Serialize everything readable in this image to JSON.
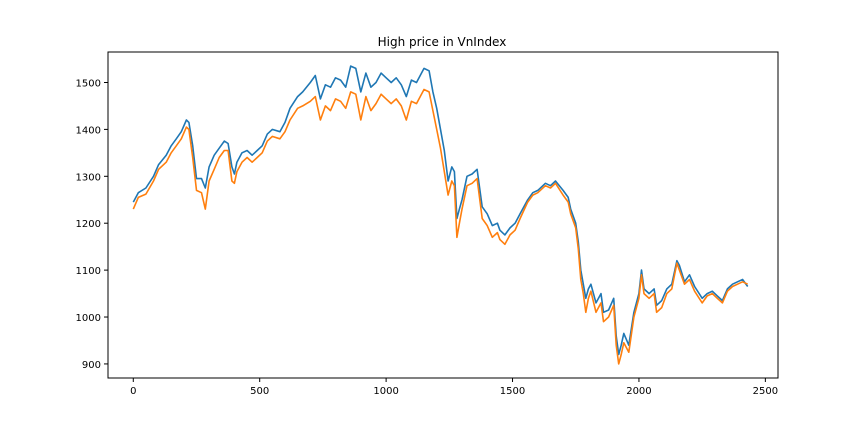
{
  "chart_data": {
    "type": "line",
    "title": "High price in VnIndex",
    "xlabel": "",
    "ylabel": "",
    "xlim": [
      -100,
      2550
    ],
    "ylim": [
      870,
      1565
    ],
    "xticks": [
      0,
      500,
      1000,
      1500,
      2000,
      2500
    ],
    "yticks": [
      900,
      1000,
      1100,
      1200,
      1300,
      1400,
      1500
    ],
    "grid": false,
    "legend": "none",
    "series": [
      {
        "color": "#1f77b4",
        "x": [
          0,
          20,
          50,
          80,
          100,
          130,
          150,
          170,
          190,
          210,
          220,
          235,
          250,
          270,
          285,
          300,
          320,
          340,
          360,
          375,
          390,
          400,
          410,
          430,
          450,
          470,
          490,
          510,
          530,
          550,
          580,
          600,
          620,
          650,
          670,
          700,
          720,
          740,
          760,
          780,
          800,
          820,
          840,
          860,
          880,
          900,
          920,
          940,
          960,
          980,
          1000,
          1020,
          1040,
          1060,
          1080,
          1100,
          1120,
          1150,
          1170,
          1185,
          1200,
          1215,
          1230,
          1245,
          1260,
          1270,
          1280,
          1290,
          1300,
          1320,
          1340,
          1360,
          1380,
          1400,
          1420,
          1440,
          1450,
          1470,
          1490,
          1510,
          1530,
          1560,
          1580,
          1600,
          1630,
          1650,
          1670,
          1700,
          1720,
          1730,
          1750,
          1760,
          1770,
          1780,
          1790,
          1800,
          1810,
          1830,
          1850,
          1860,
          1880,
          1900,
          1910,
          1920,
          1930,
          1940,
          1960,
          1980,
          2000,
          2010,
          2020,
          2040,
          2060,
          2070,
          2090,
          2110,
          2130,
          2150,
          2160,
          2180,
          2200,
          2220,
          2250,
          2270,
          2290,
          2310,
          2330,
          2350,
          2370,
          2390,
          2410,
          2430
        ],
        "y": [
          1245,
          1265,
          1275,
          1300,
          1325,
          1345,
          1365,
          1380,
          1395,
          1420,
          1415,
          1365,
          1295,
          1295,
          1275,
          1320,
          1345,
          1360,
          1375,
          1370,
          1320,
          1305,
          1330,
          1350,
          1355,
          1345,
          1355,
          1365,
          1390,
          1400,
          1395,
          1415,
          1445,
          1470,
          1480,
          1500,
          1515,
          1465,
          1495,
          1490,
          1510,
          1505,
          1490,
          1535,
          1530,
          1480,
          1520,
          1490,
          1500,
          1520,
          1510,
          1500,
          1510,
          1495,
          1470,
          1505,
          1500,
          1530,
          1525,
          1480,
          1445,
          1400,
          1355,
          1290,
          1320,
          1310,
          1210,
          1230,
          1250,
          1300,
          1305,
          1315,
          1235,
          1220,
          1195,
          1200,
          1185,
          1175,
          1190,
          1200,
          1220,
          1250,
          1265,
          1270,
          1285,
          1280,
          1290,
          1270,
          1255,
          1230,
          1200,
          1160,
          1100,
          1070,
          1040,
          1060,
          1070,
          1030,
          1050,
          1010,
          1015,
          1040,
          960,
          920,
          940,
          965,
          940,
          1010,
          1050,
          1100,
          1060,
          1050,
          1060,
          1025,
          1035,
          1060,
          1070,
          1120,
          1110,
          1075,
          1090,
          1065,
          1040,
          1050,
          1055,
          1045,
          1035,
          1060,
          1070,
          1075,
          1080,
          1065
        ]
      },
      {
        "color": "#ff7f0e",
        "x": [
          0,
          20,
          50,
          80,
          100,
          130,
          150,
          170,
          190,
          210,
          220,
          235,
          250,
          270,
          285,
          300,
          320,
          340,
          360,
          375,
          390,
          400,
          410,
          430,
          450,
          470,
          490,
          510,
          530,
          550,
          580,
          600,
          620,
          650,
          670,
          700,
          720,
          740,
          760,
          780,
          800,
          820,
          840,
          860,
          880,
          900,
          920,
          940,
          960,
          980,
          1000,
          1020,
          1040,
          1060,
          1080,
          1100,
          1120,
          1150,
          1170,
          1185,
          1200,
          1215,
          1230,
          1245,
          1260,
          1270,
          1280,
          1290,
          1300,
          1320,
          1340,
          1360,
          1380,
          1400,
          1420,
          1440,
          1450,
          1470,
          1490,
          1510,
          1530,
          1560,
          1580,
          1600,
          1630,
          1650,
          1670,
          1700,
          1720,
          1730,
          1750,
          1760,
          1770,
          1780,
          1790,
          1800,
          1810,
          1830,
          1850,
          1860,
          1880,
          1900,
          1910,
          1920,
          1930,
          1940,
          1960,
          1980,
          2000,
          2010,
          2020,
          2040,
          2060,
          2070,
          2090,
          2110,
          2130,
          2150,
          2160,
          2180,
          2200,
          2220,
          2250,
          2270,
          2290,
          2310,
          2330,
          2350,
          2370,
          2390,
          2410,
          2430
        ],
        "y": [
          1230,
          1255,
          1262,
          1290,
          1315,
          1330,
          1350,
          1365,
          1380,
          1405,
          1400,
          1340,
          1270,
          1265,
          1230,
          1290,
          1315,
          1340,
          1355,
          1355,
          1290,
          1285,
          1310,
          1330,
          1340,
          1330,
          1340,
          1350,
          1375,
          1385,
          1380,
          1395,
          1420,
          1445,
          1450,
          1460,
          1470,
          1420,
          1450,
          1440,
          1465,
          1460,
          1445,
          1480,
          1475,
          1420,
          1470,
          1440,
          1455,
          1475,
          1465,
          1455,
          1465,
          1450,
          1420,
          1460,
          1455,
          1485,
          1480,
          1440,
          1400,
          1360,
          1310,
          1260,
          1290,
          1280,
          1170,
          1200,
          1230,
          1280,
          1285,
          1295,
          1210,
          1195,
          1170,
          1180,
          1165,
          1155,
          1175,
          1185,
          1210,
          1245,
          1260,
          1265,
          1280,
          1275,
          1285,
          1260,
          1245,
          1220,
          1190,
          1145,
          1080,
          1050,
          1010,
          1040,
          1055,
          1010,
          1030,
          990,
          1000,
          1025,
          940,
          900,
          920,
          945,
          925,
          1000,
          1040,
          1090,
          1050,
          1040,
          1050,
          1010,
          1020,
          1050,
          1060,
          1115,
          1100,
          1070,
          1080,
          1055,
          1030,
          1045,
          1050,
          1040,
          1030,
          1055,
          1065,
          1070,
          1075,
          1070
        ]
      }
    ]
  }
}
